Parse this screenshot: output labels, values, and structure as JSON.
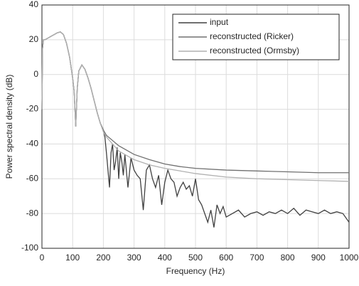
{
  "chart_data": {
    "type": "line",
    "xlabel": "Frequency (Hz)",
    "ylabel": "Power spectral density (dB)",
    "xlim": [
      0,
      1000
    ],
    "xticks": [
      0,
      100,
      200,
      300,
      400,
      500,
      600,
      700,
      800,
      900,
      1000
    ],
    "ylim": [
      -100,
      40
    ],
    "yticks": [
      -100,
      -80,
      -60,
      -40,
      -20,
      0,
      20,
      40
    ],
    "grid": true,
    "legend": "upper right",
    "series": [
      {
        "name": "input",
        "color": "#404040",
        "x": [
          0,
          2,
          5,
          10,
          20,
          30,
          40,
          50,
          60,
          70,
          80,
          90,
          100,
          105,
          110,
          115,
          120,
          130,
          140,
          150,
          160,
          170,
          180,
          190,
          200,
          205,
          210,
          215,
          220,
          225,
          230,
          235,
          240,
          245,
          250,
          255,
          260,
          265,
          270,
          280,
          290,
          300,
          310,
          320,
          330,
          340,
          350,
          360,
          370,
          380,
          390,
          400,
          410,
          420,
          430,
          440,
          450,
          460,
          470,
          480,
          490,
          500,
          510,
          520,
          530,
          540,
          550,
          560,
          570,
          580,
          590,
          600,
          620,
          640,
          660,
          680,
          700,
          720,
          740,
          760,
          780,
          800,
          820,
          840,
          860,
          880,
          900,
          920,
          940,
          960,
          980,
          1000
        ],
        "values": [
          -20,
          15,
          20,
          20,
          21,
          22,
          23,
          24,
          24.5,
          23,
          18,
          10,
          -2,
          -10,
          -30,
          -8,
          2,
          5.5,
          3,
          -2,
          -8,
          -15,
          -22,
          -28,
          -32,
          -36,
          -45,
          -55,
          -65,
          -45,
          -40,
          -55,
          -50,
          -42,
          -60,
          -45,
          -50,
          -58,
          -46,
          -65,
          -48,
          -55,
          -58,
          -60,
          -78,
          -55,
          -52,
          -60,
          -65,
          -58,
          -75,
          -62,
          -55,
          -60,
          -62,
          -70,
          -65,
          -62,
          -66,
          -64,
          -70,
          -60,
          -72,
          -75,
          -80,
          -85,
          -78,
          -88,
          -75,
          -80,
          -76,
          -82,
          -80,
          -78,
          -82,
          -80,
          -79,
          -81,
          -79,
          -80,
          -78,
          -80,
          -77,
          -81,
          -78,
          -79,
          -80,
          -78,
          -80,
          -79,
          -80,
          -85
        ]
      },
      {
        "name": "reconstructed (Ricker)",
        "color": "#707070",
        "x": [
          0,
          2,
          5,
          10,
          20,
          30,
          40,
          50,
          60,
          70,
          80,
          90,
          100,
          105,
          110,
          115,
          120,
          130,
          140,
          150,
          160,
          170,
          180,
          190,
          200,
          210,
          250,
          300,
          350,
          400,
          450,
          500,
          600,
          700,
          800,
          900,
          1000
        ],
        "values": [
          -20,
          15,
          20,
          20,
          21,
          22,
          23,
          24,
          24.5,
          23,
          18,
          10,
          -2,
          -10,
          -30,
          -8,
          2,
          5.5,
          3,
          -2,
          -8,
          -15,
          -22,
          -28,
          -32,
          -35,
          -41,
          -46,
          -49,
          -51.5,
          -53,
          -54,
          -55,
          -55.5,
          -56,
          -56.5,
          -56.5
        ]
      },
      {
        "name": "reconstructed (Ormsby)",
        "color": "#b0b0b0",
        "x": [
          0,
          2,
          5,
          10,
          20,
          30,
          40,
          50,
          60,
          70,
          80,
          90,
          100,
          105,
          110,
          115,
          120,
          130,
          140,
          150,
          160,
          170,
          180,
          190,
          200,
          210,
          250,
          300,
          350,
          400,
          450,
          500,
          600,
          700,
          800,
          900,
          1000
        ],
        "values": [
          -20,
          15,
          20,
          20,
          21,
          22,
          23,
          24,
          24.5,
          23,
          18,
          10,
          -2,
          -10,
          -30,
          -8,
          2,
          5.5,
          3,
          -2,
          -8,
          -15,
          -22,
          -28,
          -33,
          -36,
          -44,
          -49,
          -52,
          -54,
          -55.5,
          -57,
          -59,
          -60,
          -60.5,
          -61,
          -61.5
        ]
      }
    ]
  }
}
